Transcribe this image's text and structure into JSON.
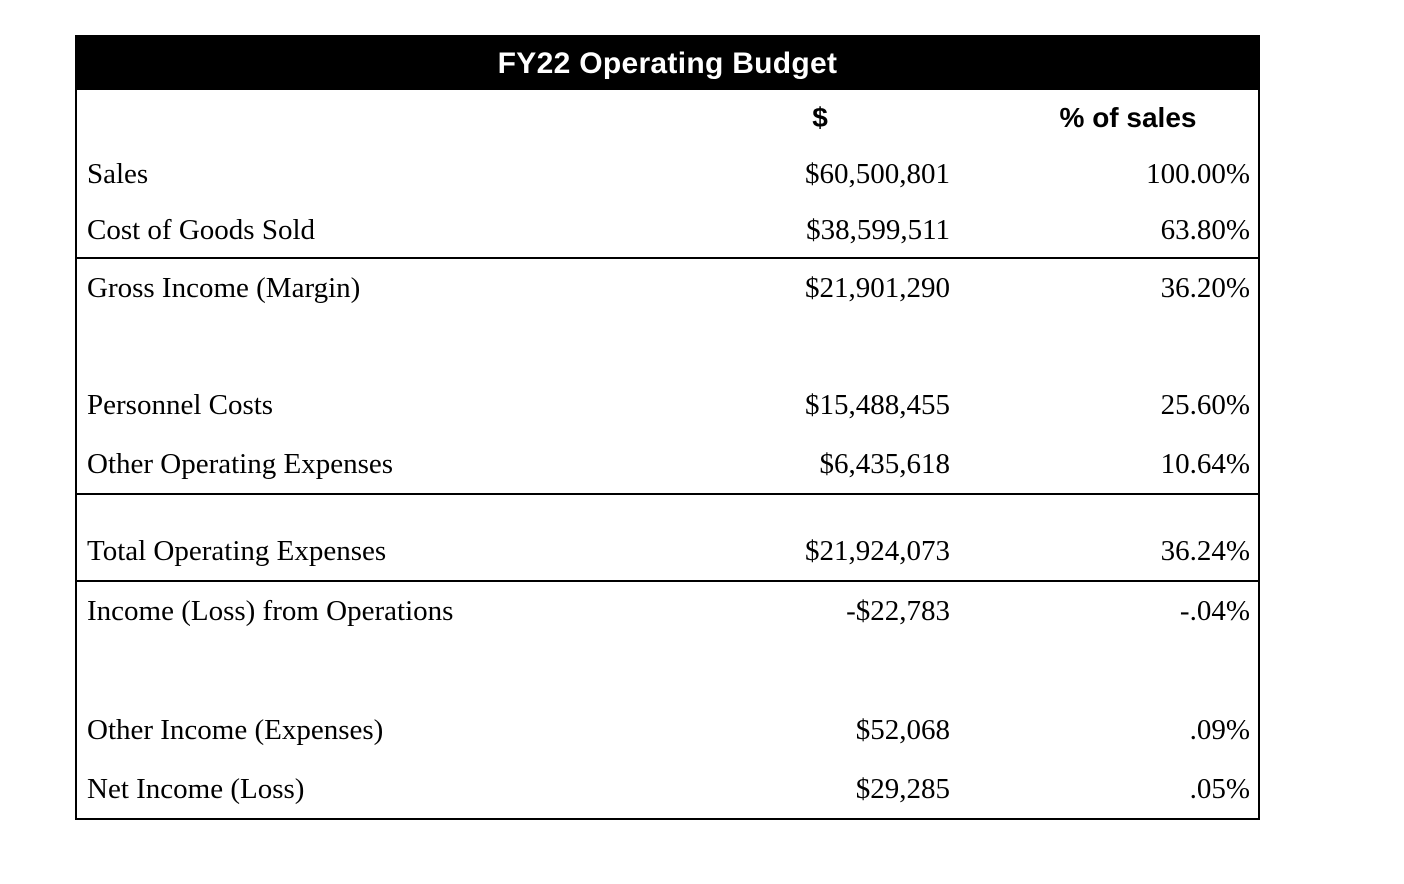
{
  "table": {
    "title": "FY22 Operating Budget",
    "header": {
      "dollar_label": "$",
      "percent_label": "% of sales"
    },
    "colors": {
      "title_bg": "#000000",
      "title_text": "#ffffff",
      "border": "#000000",
      "body_text": "#000000",
      "background": "#ffffff"
    },
    "rows": [
      {
        "label": "Sales",
        "dollar": "$60,500,801",
        "percent": "100.00%"
      },
      {
        "label": "Cost of Goods Sold",
        "dollar": "$38,599,511",
        "percent": "63.80%"
      },
      {
        "label": "Gross Income (Margin)",
        "dollar": "$21,901,290",
        "percent": "36.20%"
      },
      {
        "label": "Personnel Costs",
        "dollar": "$15,488,455",
        "percent": "25.60%"
      },
      {
        "label": "Other Operating Expenses",
        "dollar": "$6,435,618",
        "percent": "10.64%"
      },
      {
        "label": "Total Operating Expenses",
        "dollar": "$21,924,073",
        "percent": "36.24%"
      },
      {
        "label": "Income (Loss) from Operations",
        "dollar": "-$22,783",
        "percent": "-.04%"
      },
      {
        "label": "Other Income (Expenses)",
        "dollar": "$52,068",
        "percent": ".09%"
      },
      {
        "label": "Net Income (Loss)",
        "dollar": "$29,285",
        "percent": ".05%"
      }
    ]
  },
  "chart_data": {
    "type": "table",
    "title": "FY22 Operating Budget",
    "columns": [
      "",
      "$",
      "% of sales"
    ],
    "rows": [
      [
        "Sales",
        "$60,500,801",
        "100.00%"
      ],
      [
        "Cost of Goods Sold",
        "$38,599,511",
        "63.80%"
      ],
      [
        "Gross Income (Margin)",
        "$21,901,290",
        "36.20%"
      ],
      [
        "Personnel Costs",
        "$15,488,455",
        "25.60%"
      ],
      [
        "Other Operating Expenses",
        "$6,435,618",
        "10.64%"
      ],
      [
        "Total Operating Expenses",
        "$21,924,073",
        "36.24%"
      ],
      [
        "Income (Loss) from Operations",
        "-$22,783",
        "-.04%"
      ],
      [
        "Other Income (Expenses)",
        "$52,068",
        ".09%"
      ],
      [
        "Net Income (Loss)",
        "$29,285",
        ".05%"
      ]
    ]
  }
}
